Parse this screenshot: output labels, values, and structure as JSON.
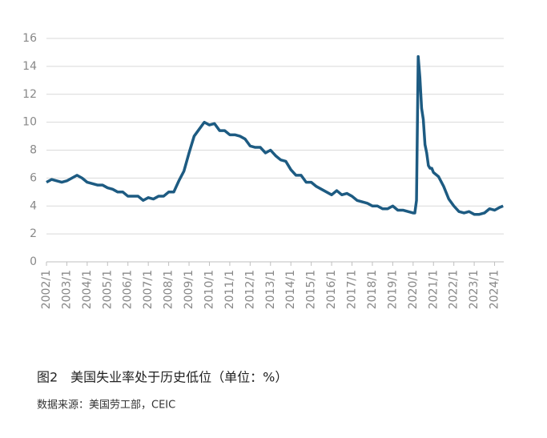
{
  "chart_data": {
    "type": "line",
    "caption": "图2　美国失业率处于历史低位（单位：%）",
    "source": "数据来源：美国劳工部，CEIC",
    "x": [
      2002,
      2002.25,
      2002.5,
      2002.75,
      2003,
      2003.25,
      2003.5,
      2003.75,
      2004,
      2004.25,
      2004.5,
      2004.75,
      2005,
      2005.25,
      2005.5,
      2005.75,
      2006,
      2006.25,
      2006.5,
      2006.75,
      2007,
      2007.25,
      2007.5,
      2007.75,
      2008,
      2008.25,
      2008.5,
      2008.75,
      2009,
      2009.25,
      2009.5,
      2009.75,
      2010,
      2010.25,
      2010.5,
      2010.75,
      2011,
      2011.25,
      2011.5,
      2011.75,
      2012,
      2012.25,
      2012.5,
      2012.75,
      2013,
      2013.25,
      2013.5,
      2013.75,
      2014,
      2014.25,
      2014.5,
      2014.75,
      2015,
      2015.25,
      2015.5,
      2015.75,
      2016,
      2016.25,
      2016.5,
      2016.75,
      2017,
      2017.25,
      2017.5,
      2017.75,
      2018,
      2018.25,
      2018.5,
      2018.75,
      2019,
      2019.25,
      2019.5,
      2019.75,
      2020,
      2020.083,
      2020.167,
      2020.25,
      2020.333,
      2020.417,
      2020.5,
      2020.583,
      2020.667,
      2020.75,
      2020.833,
      2020.917,
      2021,
      2021.25,
      2021.5,
      2021.75,
      2022,
      2022.25,
      2022.5,
      2022.75,
      2023,
      2023.25,
      2023.5,
      2023.75,
      2024,
      2024.25,
      2024.417
    ],
    "values": [
      5.7,
      5.9,
      5.8,
      5.7,
      5.8,
      6.0,
      6.2,
      6.0,
      5.7,
      5.6,
      5.5,
      5.5,
      5.3,
      5.2,
      5.0,
      5.0,
      4.7,
      4.7,
      4.7,
      4.4,
      4.6,
      4.5,
      4.7,
      4.7,
      5.0,
      5.0,
      5.8,
      6.5,
      7.8,
      9.0,
      9.5,
      10.0,
      9.8,
      9.9,
      9.4,
      9.4,
      9.1,
      9.1,
      9.0,
      8.8,
      8.3,
      8.2,
      8.2,
      7.8,
      8.0,
      7.6,
      7.3,
      7.2,
      6.6,
      6.2,
      6.2,
      5.7,
      5.7,
      5.4,
      5.2,
      5.0,
      4.8,
      5.1,
      4.8,
      4.9,
      4.7,
      4.4,
      4.3,
      4.2,
      4.0,
      4.0,
      3.8,
      3.8,
      4.0,
      3.7,
      3.7,
      3.6,
      3.5,
      3.5,
      4.4,
      14.7,
      13.2,
      11.0,
      10.2,
      8.4,
      7.8,
      6.9,
      6.7,
      6.7,
      6.4,
      6.1,
      5.4,
      4.5,
      4.0,
      3.6,
      3.5,
      3.6,
      3.4,
      3.4,
      3.5,
      3.8,
      3.7,
      3.9,
      4.0
    ],
    "color": "#1d5b82",
    "xlim": [
      2002,
      2024.45
    ],
    "xticks": [
      {
        "value": 2002,
        "label": "2002/1"
      },
      {
        "value": 2003,
        "label": "2003/1"
      },
      {
        "value": 2004,
        "label": "2004/1"
      },
      {
        "value": 2005,
        "label": "2005/1"
      },
      {
        "value": 2006,
        "label": "2006/1"
      },
      {
        "value": 2007,
        "label": "2007/1"
      },
      {
        "value": 2008,
        "label": "2008/1"
      },
      {
        "value": 2009,
        "label": "2009/1"
      },
      {
        "value": 2010,
        "label": "2010/1"
      },
      {
        "value": 2011,
        "label": "2011/1"
      },
      {
        "value": 2012,
        "label": "2012/1"
      },
      {
        "value": 2013,
        "label": "2013/1"
      },
      {
        "value": 2014,
        "label": "2014/1"
      },
      {
        "value": 2015,
        "label": "2015/1"
      },
      {
        "value": 2016,
        "label": "2016/1"
      },
      {
        "value": 2017,
        "label": "2017/1"
      },
      {
        "value": 2018,
        "label": "2018/1"
      },
      {
        "value": 2019,
        "label": "2019/1"
      },
      {
        "value": 2020,
        "label": "2020/1"
      },
      {
        "value": 2021,
        "label": "2021/1"
      },
      {
        "value": 2022,
        "label": "2022/1"
      },
      {
        "value": 2023,
        "label": "2023/1"
      },
      {
        "value": 2024,
        "label": "2024/1"
      }
    ],
    "ylim": [
      0,
      16
    ],
    "yticks": [
      0,
      2,
      4,
      6,
      8,
      10,
      12,
      14,
      16
    ],
    "grid": true
  }
}
